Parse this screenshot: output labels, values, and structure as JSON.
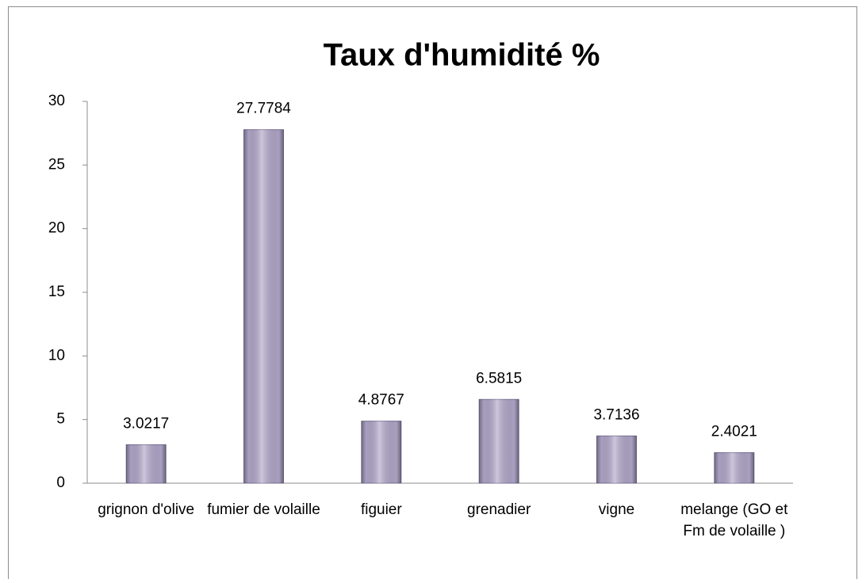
{
  "chart_data": {
    "type": "bar",
    "title": "Taux d'humidité %",
    "categories": [
      "grignon d'olive",
      "fumier de volaille",
      "figuier",
      "grenadier",
      "vigne",
      "melange (GO et Fm de volaille )"
    ],
    "values": [
      3.0217,
      27.7784,
      4.8767,
      6.5815,
      3.7136,
      2.4021
    ],
    "color": "#b2a8cb",
    "ylim": [
      0,
      30
    ],
    "yticks": [
      0,
      5,
      10,
      15,
      20,
      25,
      30
    ],
    "grid": false
  }
}
